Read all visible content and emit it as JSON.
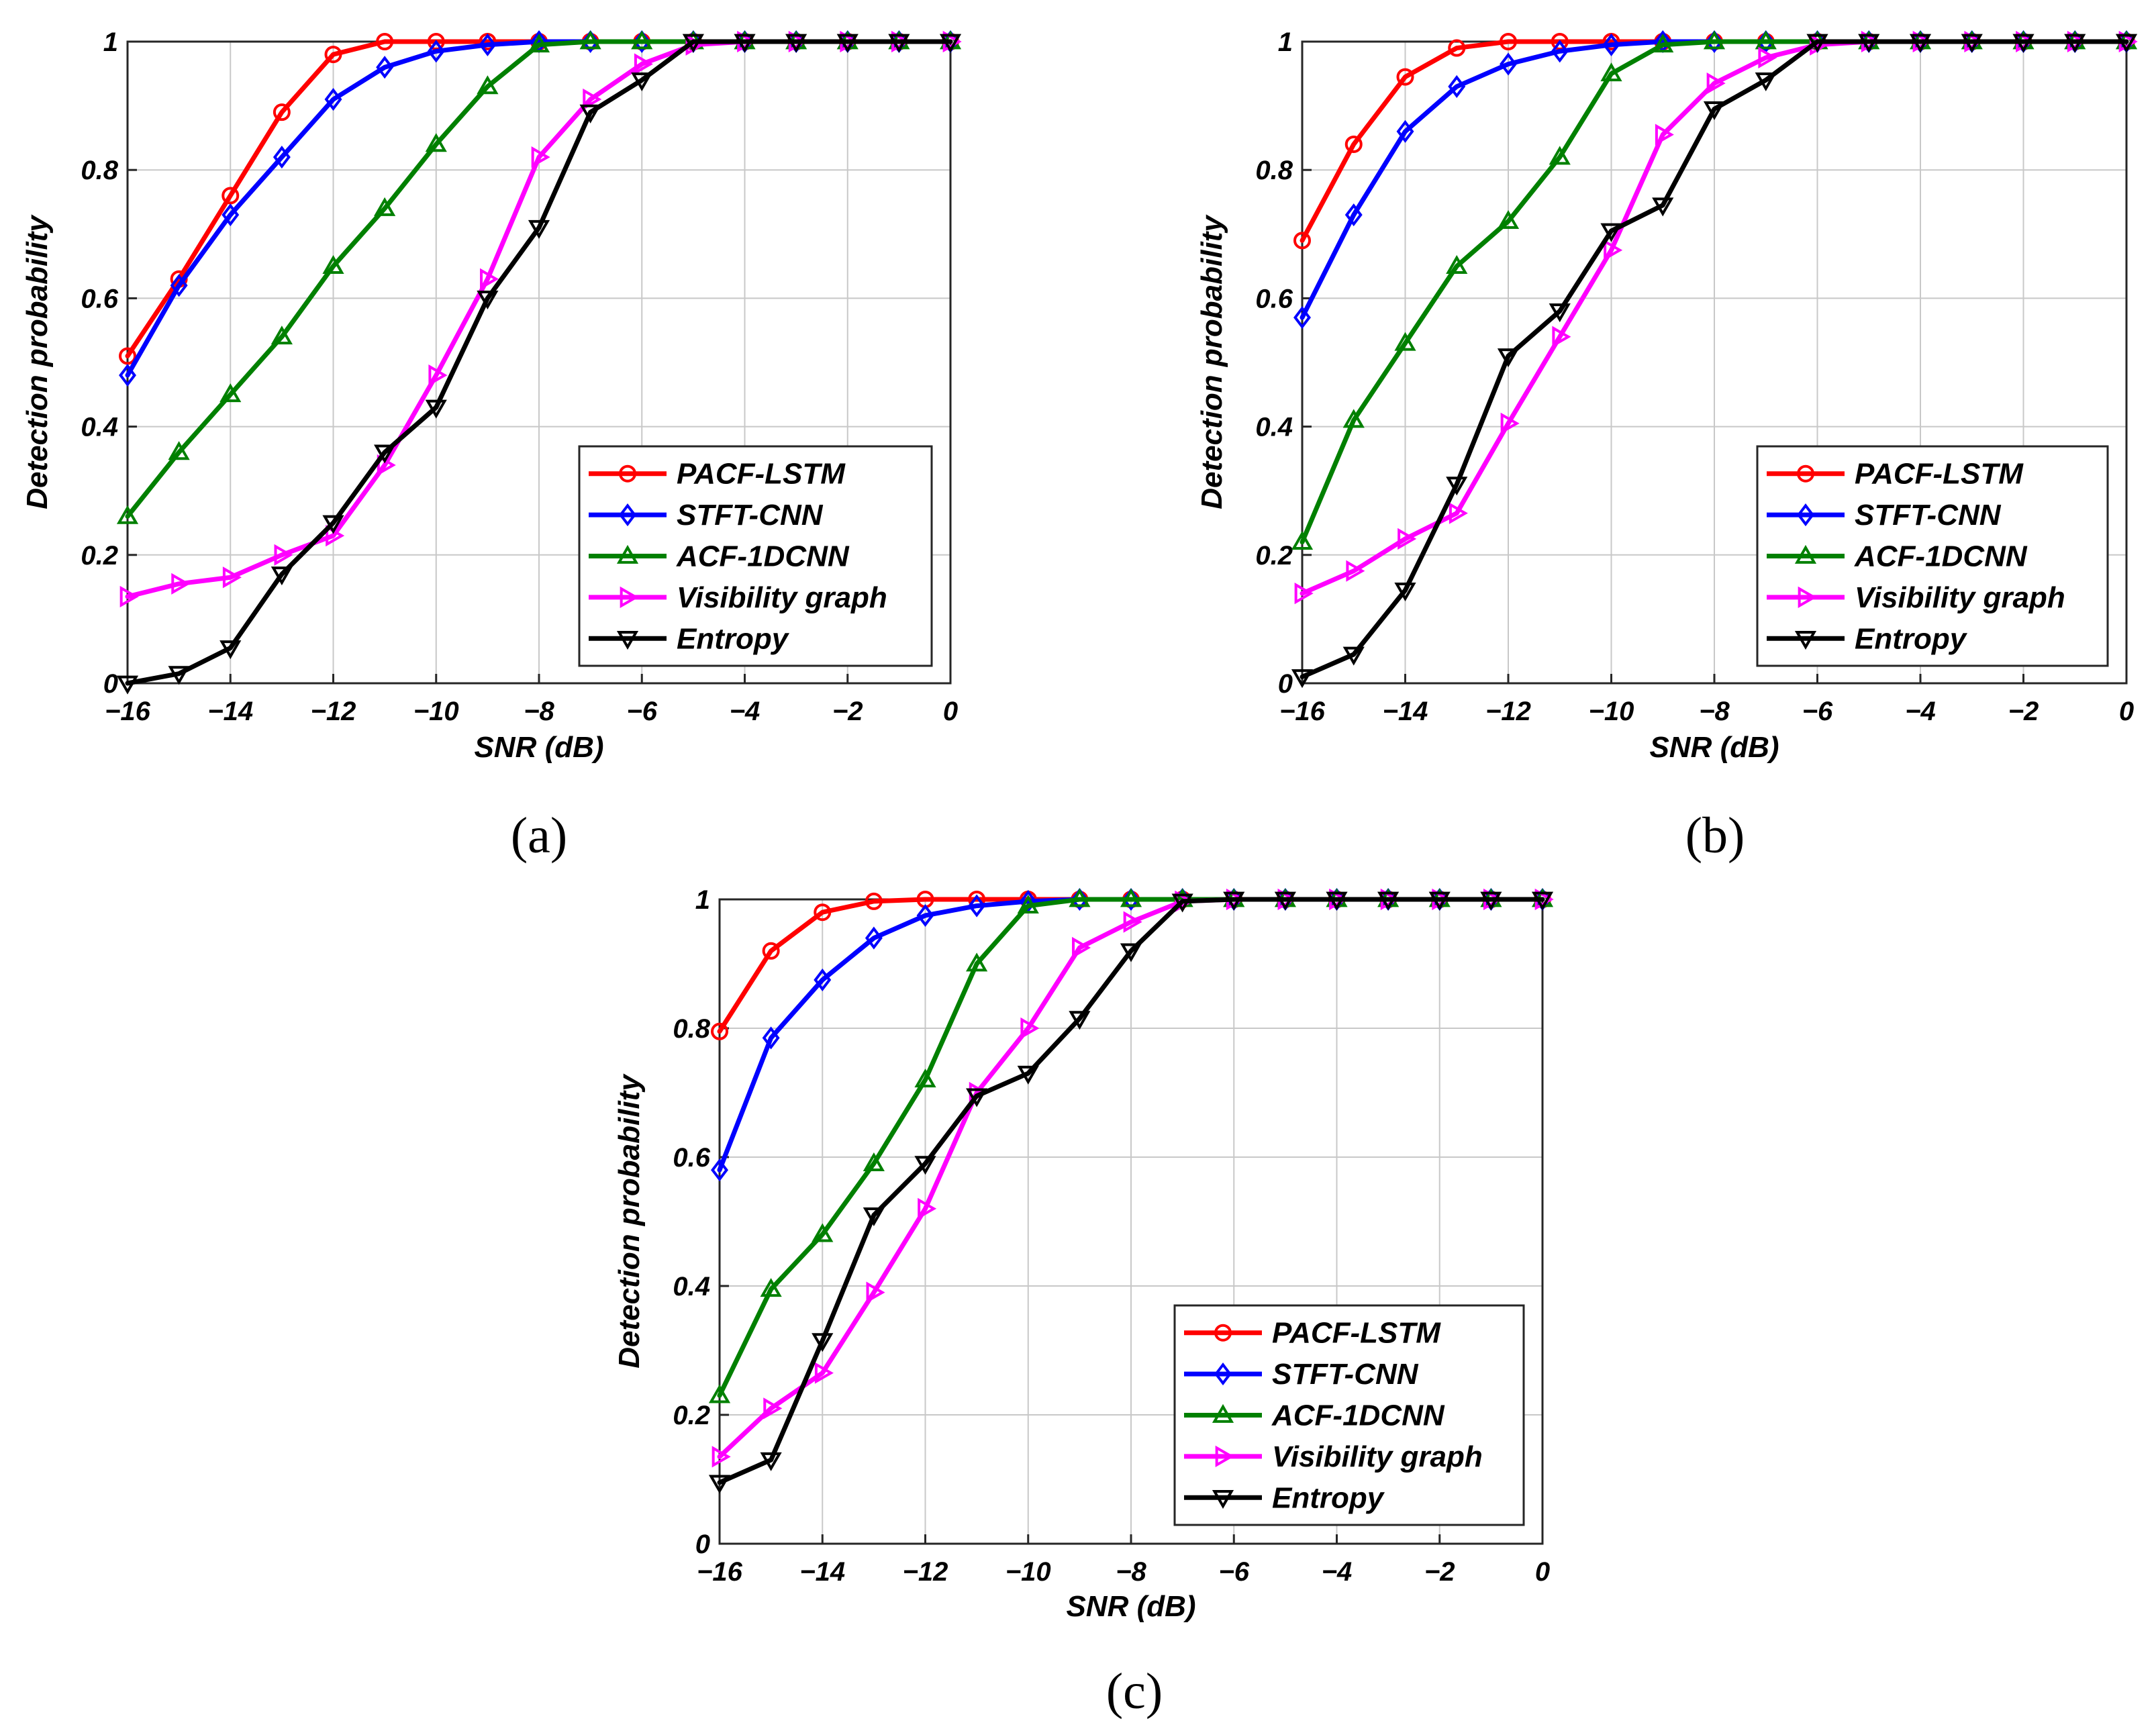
{
  "chart_data": [
    {
      "type": "line",
      "caption": "(a)",
      "xlabel": "SNR (dB)",
      "ylabel": "Detection probability",
      "xlim": [
        -16,
        0
      ],
      "ylim": [
        0,
        1
      ],
      "xticks": [
        -16,
        -14,
        -12,
        -10,
        -8,
        -6,
        -4,
        -2,
        0
      ],
      "xtick_labels": [
        "−16",
        "−14",
        "−12",
        "−10",
        "−8",
        "−6",
        "−4",
        "−2",
        "0"
      ],
      "yticks": [
        0,
        0.2,
        0.4,
        0.6,
        0.8,
        1
      ],
      "ytick_labels": [
        "0",
        "0.2",
        "0.4",
        "0.6",
        "0.8",
        "1"
      ],
      "grid": true,
      "legend_position": "bottom-right",
      "x": [
        -16,
        -15,
        -14,
        -13,
        -12,
        -11,
        -10,
        -9,
        -8,
        -7,
        -6,
        -5,
        -4,
        -3,
        -2,
        -1,
        0
      ],
      "series": [
        {
          "name": "PACF-LSTM",
          "color": "#ff0000",
          "marker": "circle",
          "values": [
            0.51,
            0.63,
            0.76,
            0.89,
            0.98,
            1.0,
            1.0,
            1.0,
            1.0,
            1.0,
            1.0,
            1.0,
            1.0,
            1.0,
            1.0,
            1.0,
            1.0
          ]
        },
        {
          "name": "STFT-CNN",
          "color": "#0000ff",
          "marker": "diamond",
          "values": [
            0.48,
            0.62,
            0.73,
            0.82,
            0.91,
            0.96,
            0.985,
            0.995,
            1.0,
            1.0,
            1.0,
            1.0,
            1.0,
            1.0,
            1.0,
            1.0,
            1.0
          ]
        },
        {
          "name": "ACF-1DCNN",
          "color": "#008000",
          "marker": "triangle-up",
          "values": [
            0.26,
            0.36,
            0.45,
            0.54,
            0.65,
            0.74,
            0.84,
            0.93,
            0.995,
            1.0,
            1.0,
            1.0,
            1.0,
            1.0,
            1.0,
            1.0,
            1.0
          ]
        },
        {
          "name": "Visibility graph",
          "color": "#ff00ff",
          "marker": "triangle-right",
          "values": [
            0.135,
            0.155,
            0.165,
            0.2,
            0.23,
            0.34,
            0.48,
            0.63,
            0.82,
            0.91,
            0.965,
            0.995,
            1.0,
            1.0,
            1.0,
            1.0,
            1.0
          ]
        },
        {
          "name": "Entropy",
          "color": "#000000",
          "marker": "triangle-down",
          "values": [
            0.0,
            0.015,
            0.055,
            0.17,
            0.25,
            0.36,
            0.43,
            0.6,
            0.71,
            0.89,
            0.94,
            1.0,
            1.0,
            1.0,
            1.0,
            1.0,
            1.0
          ]
        }
      ]
    },
    {
      "type": "line",
      "caption": "(b)",
      "xlabel": "SNR (dB)",
      "ylabel": "Detection probability",
      "xlim": [
        -16,
        0
      ],
      "ylim": [
        0,
        1
      ],
      "xticks": [
        -16,
        -14,
        -12,
        -10,
        -8,
        -6,
        -4,
        -2,
        0
      ],
      "xtick_labels": [
        "−16",
        "−14",
        "−12",
        "−10",
        "−8",
        "−6",
        "−4",
        "−2",
        "0"
      ],
      "yticks": [
        0,
        0.2,
        0.4,
        0.6,
        0.8,
        1
      ],
      "ytick_labels": [
        "0",
        "0.2",
        "0.4",
        "0.6",
        "0.8",
        "1"
      ],
      "grid": true,
      "legend_position": "bottom-right",
      "x": [
        -16,
        -15,
        -14,
        -13,
        -12,
        -11,
        -10,
        -9,
        -8,
        -7,
        -6,
        -5,
        -4,
        -3,
        -2,
        -1,
        0
      ],
      "series": [
        {
          "name": "PACF-LSTM",
          "color": "#ff0000",
          "marker": "circle",
          "values": [
            0.69,
            0.84,
            0.945,
            0.99,
            1.0,
            1.0,
            1.0,
            1.0,
            1.0,
            1.0,
            1.0,
            1.0,
            1.0,
            1.0,
            1.0,
            1.0,
            1.0
          ]
        },
        {
          "name": "STFT-CNN",
          "color": "#0000ff",
          "marker": "diamond",
          "values": [
            0.57,
            0.73,
            0.86,
            0.93,
            0.965,
            0.985,
            0.995,
            1.0,
            1.0,
            1.0,
            1.0,
            1.0,
            1.0,
            1.0,
            1.0,
            1.0,
            1.0
          ]
        },
        {
          "name": "ACF-1DCNN",
          "color": "#008000",
          "marker": "triangle-up",
          "values": [
            0.22,
            0.41,
            0.53,
            0.65,
            0.72,
            0.82,
            0.95,
            0.995,
            1.0,
            1.0,
            1.0,
            1.0,
            1.0,
            1.0,
            1.0,
            1.0,
            1.0
          ]
        },
        {
          "name": "Visibility graph",
          "color": "#ff00ff",
          "marker": "triangle-right",
          "values": [
            0.14,
            0.175,
            0.225,
            0.265,
            0.405,
            0.54,
            0.675,
            0.855,
            0.935,
            0.975,
            0.995,
            1.0,
            1.0,
            1.0,
            1.0,
            1.0,
            1.0
          ]
        },
        {
          "name": "Entropy",
          "color": "#000000",
          "marker": "triangle-down",
          "values": [
            0.01,
            0.045,
            0.145,
            0.31,
            0.51,
            0.58,
            0.705,
            0.745,
            0.895,
            0.94,
            1.0,
            1.0,
            1.0,
            1.0,
            1.0,
            1.0,
            1.0
          ]
        }
      ]
    },
    {
      "type": "line",
      "caption": "(c)",
      "xlabel": "SNR (dB)",
      "ylabel": "Detection probability",
      "xlim": [
        -16,
        0
      ],
      "ylim": [
        0,
        1
      ],
      "xticks": [
        -16,
        -14,
        -12,
        -10,
        -8,
        -6,
        -4,
        -2,
        0
      ],
      "xtick_labels": [
        "−16",
        "−14",
        "−12",
        "−10",
        "−8",
        "−6",
        "−4",
        "−2",
        "0"
      ],
      "yticks": [
        0,
        0.2,
        0.4,
        0.6,
        0.8,
        1
      ],
      "ytick_labels": [
        "0",
        "0.2",
        "0.4",
        "0.6",
        "0.8",
        "1"
      ],
      "grid": true,
      "legend_position": "bottom-right",
      "x": [
        -16,
        -15,
        -14,
        -13,
        -12,
        -11,
        -10,
        -9,
        -8,
        -7,
        -6,
        -5,
        -4,
        -3,
        -2,
        -1,
        0
      ],
      "series": [
        {
          "name": "PACF-LSTM",
          "color": "#ff0000",
          "marker": "circle",
          "values": [
            0.795,
            0.92,
            0.98,
            0.997,
            1.0,
            1.0,
            1.0,
            1.0,
            1.0,
            1.0,
            1.0,
            1.0,
            1.0,
            1.0,
            1.0,
            1.0,
            1.0
          ]
        },
        {
          "name": "STFT-CNN",
          "color": "#0000ff",
          "marker": "diamond",
          "values": [
            0.58,
            0.785,
            0.875,
            0.94,
            0.975,
            0.99,
            0.997,
            1.0,
            1.0,
            1.0,
            1.0,
            1.0,
            1.0,
            1.0,
            1.0,
            1.0,
            1.0
          ]
        },
        {
          "name": "ACF-1DCNN",
          "color": "#008000",
          "marker": "triangle-up",
          "values": [
            0.23,
            0.395,
            0.48,
            0.59,
            0.72,
            0.9,
            0.99,
            1.0,
            1.0,
            1.0,
            1.0,
            1.0,
            1.0,
            1.0,
            1.0,
            1.0,
            1.0
          ]
        },
        {
          "name": "Visibility graph",
          "color": "#ff00ff",
          "marker": "triangle-right",
          "values": [
            0.135,
            0.21,
            0.265,
            0.39,
            0.52,
            0.7,
            0.8,
            0.925,
            0.965,
            0.997,
            1.0,
            1.0,
            1.0,
            1.0,
            1.0,
            1.0,
            1.0
          ]
        },
        {
          "name": "Entropy",
          "color": "#000000",
          "marker": "triangle-down",
          "values": [
            0.095,
            0.13,
            0.315,
            0.51,
            0.59,
            0.695,
            0.73,
            0.815,
            0.92,
            0.997,
            1.0,
            1.0,
            1.0,
            1.0,
            1.0,
            1.0,
            1.0
          ]
        }
      ]
    }
  ]
}
